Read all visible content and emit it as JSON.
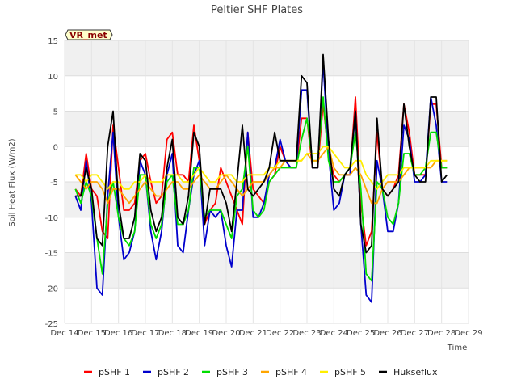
{
  "chart_data": {
    "type": "line",
    "title": "Peltier SHF Plates",
    "badge": "VR_met",
    "xlabel": "Time",
    "ylabel": "Soil Heat Flux (W/m2)",
    "xlim": [
      0,
      15
    ],
    "ylim": [
      -25,
      15
    ],
    "y_ticks": [
      -25,
      -20,
      -15,
      -10,
      -5,
      0,
      5,
      10,
      15
    ],
    "x_ticks": [
      "Dec 14",
      "Dec 15",
      "Dec 16",
      "Dec 17",
      "Dec 18",
      "Dec 19",
      "Dec 20",
      "Dec 21",
      "Dec 22",
      "Dec 23",
      "Dec 24",
      "Dec 25",
      "Dec 26",
      "Dec 27",
      "Dec 28",
      "Dec 29"
    ],
    "grid": true,
    "legend_position": "bottom",
    "x": [
      0.4,
      0.6,
      0.8,
      1.0,
      1.2,
      1.4,
      1.6,
      1.8,
      2.0,
      2.2,
      2.4,
      2.6,
      2.8,
      3.0,
      3.2,
      3.4,
      3.6,
      3.8,
      4.0,
      4.2,
      4.4,
      4.6,
      4.8,
      5.0,
      5.2,
      5.4,
      5.6,
      5.8,
      6.0,
      6.2,
      6.4,
      6.6,
      6.8,
      7.0,
      7.2,
      7.4,
      7.6,
      7.8,
      8.0,
      8.2,
      8.4,
      8.6,
      8.8,
      9.0,
      9.2,
      9.4,
      9.6,
      9.8,
      10.0,
      10.2,
      10.4,
      10.6,
      10.8,
      11.0,
      11.2,
      11.4,
      11.6,
      11.8,
      12.0,
      12.2,
      12.4,
      12.6,
      12.8,
      13.0,
      13.2,
      13.4,
      13.6,
      13.8,
      14.0,
      14.2
    ],
    "series": [
      {
        "name": "pSHF 1",
        "color": "#ff0000",
        "values": [
          -6,
          -7,
          -1,
          -6,
          -7,
          -12,
          -13,
          3,
          -3,
          -9,
          -9,
          -8,
          -2,
          -1,
          -5,
          -8,
          -7,
          1,
          2,
          -4,
          -4,
          -5,
          3,
          -2,
          -11,
          -9,
          -8,
          -3,
          -5,
          -7,
          -9,
          -11,
          2,
          -6,
          -7,
          -8,
          -5,
          -4,
          0,
          -2,
          -3,
          -3,
          4,
          4,
          -3,
          -3,
          6,
          -1,
          -4,
          -5,
          -4,
          -4,
          7,
          -8,
          -14,
          -12,
          2,
          -6,
          -7,
          -6,
          -4,
          6,
          2,
          -4,
          -4,
          -4,
          6,
          6,
          -3,
          -3
        ]
      },
      {
        "name": "pSHF 2",
        "color": "#0000cc",
        "values": [
          -7,
          -9,
          -2,
          -8,
          -20,
          -21,
          -7,
          2,
          -10,
          -16,
          -15,
          -12,
          -2,
          -4,
          -12,
          -16,
          -12,
          -4,
          -1,
          -14,
          -15,
          -9,
          -4,
          -2,
          -14,
          -9,
          -10,
          -9,
          -14,
          -17,
          -9,
          -9,
          2,
          -10,
          -10,
          -8,
          -4,
          -3,
          1,
          -2,
          -3,
          -3,
          8,
          8,
          -3,
          -3,
          12,
          -1,
          -9,
          -8,
          -4,
          -4,
          5,
          -11,
          -21,
          -22,
          -2,
          -6,
          -12,
          -12,
          -8,
          3,
          1,
          -5,
          -5,
          -4,
          7,
          3,
          -5,
          -5
        ]
      },
      {
        "name": "pSHF 3",
        "color": "#00dd00",
        "values": [
          -6,
          -8,
          -5,
          -7,
          -13,
          -18,
          -8,
          -5,
          -10,
          -13,
          -14,
          -12,
          -4,
          -4,
          -11,
          -13,
          -11,
          -5,
          -4,
          -11,
          -11,
          -9,
          -3,
          -3,
          -10,
          -9,
          -9,
          -9,
          -11,
          -13,
          -7,
          -6,
          0,
          -9,
          -10,
          -9,
          -5,
          -4,
          -3,
          -3,
          -3,
          -3,
          1,
          4,
          -2,
          -2,
          7,
          -2,
          -5,
          -5,
          -4,
          -3,
          2,
          -6,
          -18,
          -19,
          -5,
          -6,
          -10,
          -11,
          -8,
          -1,
          -1,
          -4,
          -4,
          -3,
          2,
          2,
          -3,
          -3
        ]
      },
      {
        "name": "pSHF 4",
        "color": "#ffa500",
        "values": [
          -4,
          -5,
          -6,
          -5,
          -5,
          -6,
          -8,
          -6,
          -6,
          -7,
          -8,
          -7,
          -6,
          -5,
          -6,
          -7,
          -7,
          -6,
          -5,
          -5,
          -6,
          -6,
          -5,
          -4,
          -5,
          -6,
          -6,
          -5,
          -4,
          -5,
          -6,
          -7,
          -6,
          -5,
          -5,
          -5,
          -4,
          -3,
          -3,
          -2,
          -2,
          -2,
          -2,
          -1,
          -2,
          -2,
          -1,
          0,
          -3,
          -4,
          -4,
          -4,
          -3,
          -4,
          -6,
          -8,
          -8,
          -6,
          -5,
          -5,
          -5,
          -4,
          -3,
          -3,
          -3,
          -3,
          -3,
          -2,
          -2,
          -2
        ]
      },
      {
        "name": "pSHF 5",
        "color": "#ffee00",
        "values": [
          -4,
          -4,
          -5,
          -4,
          -4,
          -5,
          -6,
          -5,
          -5,
          -6,
          -6,
          -5,
          -5,
          -4,
          -5,
          -5,
          -5,
          -4,
          -4,
          -4,
          -5,
          -5,
          -4,
          -3,
          -4,
          -5,
          -5,
          -4,
          -4,
          -4,
          -5,
          -5,
          -4,
          -4,
          -4,
          -4,
          -3,
          -3,
          -2,
          -2,
          -2,
          -2,
          -2,
          -1,
          -1,
          -1,
          0,
          0,
          -1,
          -2,
          -3,
          -3,
          -2,
          -2,
          -4,
          -5,
          -6,
          -5,
          -4,
          -4,
          -4,
          -3,
          -3,
          -3,
          -3,
          -3,
          -2,
          -2,
          -2,
          -2
        ]
      },
      {
        "name": "Hukseflux",
        "color": "#000000",
        "values": [
          -7,
          -7,
          -3,
          -6,
          -13,
          -14,
          0,
          5,
          -8,
          -13,
          -13,
          -10,
          -1,
          -2,
          -9,
          -12,
          -10,
          -3,
          1,
          -10,
          -11,
          -7,
          2,
          0,
          -11,
          -6,
          -6,
          -6,
          -8,
          -12,
          -5,
          3,
          -6,
          -7,
          -6,
          -5,
          -3,
          2,
          -2,
          -2,
          -2,
          -2,
          10,
          9,
          -3,
          -3,
          13,
          1,
          -6,
          -7,
          -4,
          -3,
          5,
          -11,
          -15,
          -14,
          4,
          -6,
          -7,
          -6,
          -5,
          6,
          0,
          -4,
          -5,
          -5,
          7,
          7,
          -5,
          -4
        ]
      }
    ]
  }
}
